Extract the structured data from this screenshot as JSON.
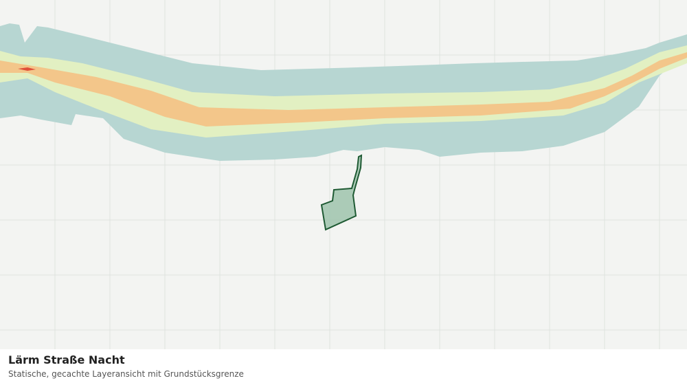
{
  "caption": {
    "title": "Lärm Straße Nacht",
    "subtitle": "Statische, gecachte Layeransicht mit Grundstücksgrenze"
  }
}
